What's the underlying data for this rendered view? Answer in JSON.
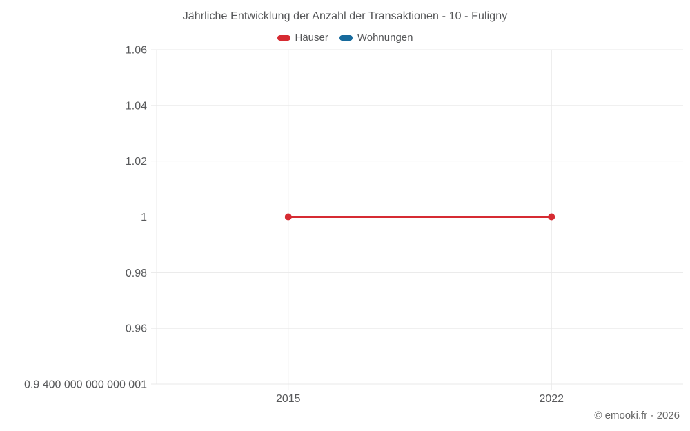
{
  "page": {
    "background": "#ffffff"
  },
  "footer": {
    "copyright": "© emooki.fr - 2026"
  },
  "chart_data": {
    "type": "line",
    "title": "Jährliche Entwicklung der Anzahl der Transaktionen - 10 - Fuligny",
    "xlabel": "",
    "ylabel": "",
    "categories": [
      "2015",
      "2022"
    ],
    "series": [
      {
        "key": "haeuser",
        "name": "Häuser",
        "color": "#d62b32",
        "values": [
          1,
          1
        ]
      },
      {
        "key": "wohnungen",
        "name": "Wohnungen",
        "color": "#176a9c",
        "values": []
      }
    ],
    "ylim": [
      0.94,
      1.06
    ],
    "yticks": [
      {
        "value": 0.94,
        "label": "0.9 400 000 000 000 001"
      },
      {
        "value": 0.96,
        "label": "0.96"
      },
      {
        "value": 0.98,
        "label": "0.98"
      },
      {
        "value": 1,
        "label": "1"
      },
      {
        "value": 1.02,
        "label": "1.02"
      },
      {
        "value": 1.04,
        "label": "1.04"
      },
      {
        "value": 1.06,
        "label": "1.06"
      }
    ],
    "grid": true,
    "grid_color": "#e8e8e8",
    "legend_position": "top",
    "text_color": "#58595b"
  }
}
